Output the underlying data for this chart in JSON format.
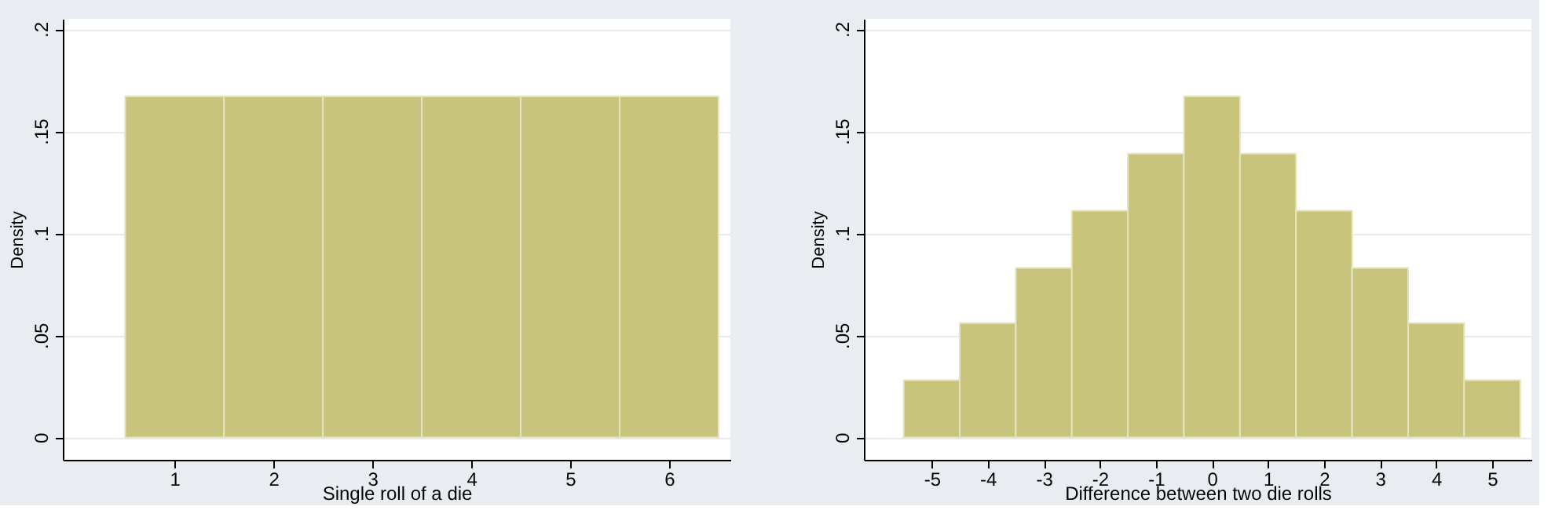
{
  "chart_data": [
    {
      "type": "histogram",
      "xlabel": "Single roll of a die",
      "ylabel": "Density",
      "color": "#c8c47c",
      "bins": [
        0.5,
        1.5,
        2.5,
        3.5,
        4.5,
        5.5,
        6.5
      ],
      "values": [
        0.167,
        0.167,
        0.167,
        0.167,
        0.167,
        0.167
      ],
      "xlim": [
        -0.13,
        6.62
      ],
      "xticks": [
        1,
        2,
        3,
        4,
        5,
        6
      ],
      "ylim": [
        -0.011,
        0.205
      ],
      "yticks": [
        0,
        {
          "value": 0.05,
          "label": ".05"
        },
        {
          "value": 0.1,
          "label": ".1"
        },
        {
          "value": 0.15,
          "label": ".15"
        },
        {
          "value": 0.2,
          "label": ".2"
        }
      ],
      "grid": "y"
    },
    {
      "type": "histogram",
      "xlabel": "Difference between two die rolls",
      "ylabel": "Density",
      "color": "#c8c47c",
      "bins": [
        -5.5,
        -4.5,
        -3.5,
        -2.5,
        -1.5,
        -0.5,
        0.5,
        1.5,
        2.5,
        3.5,
        4.5,
        5.5
      ],
      "values": [
        0.028,
        0.056,
        0.083,
        0.111,
        0.139,
        0.167,
        0.139,
        0.111,
        0.083,
        0.056,
        0.028
      ],
      "xlim": [
        -6.21,
        5.7
      ],
      "xticks": [
        -5,
        -4,
        -3,
        -2,
        -1,
        0,
        1,
        2,
        3,
        4,
        5
      ],
      "ylim": [
        -0.011,
        0.205
      ],
      "yticks": [
        0,
        {
          "value": 0.05,
          "label": ".05"
        },
        {
          "value": 0.1,
          "label": ".1"
        },
        {
          "value": 0.15,
          "label": ".15"
        },
        {
          "value": 0.2,
          "label": ".2"
        }
      ],
      "grid": "y"
    }
  ]
}
